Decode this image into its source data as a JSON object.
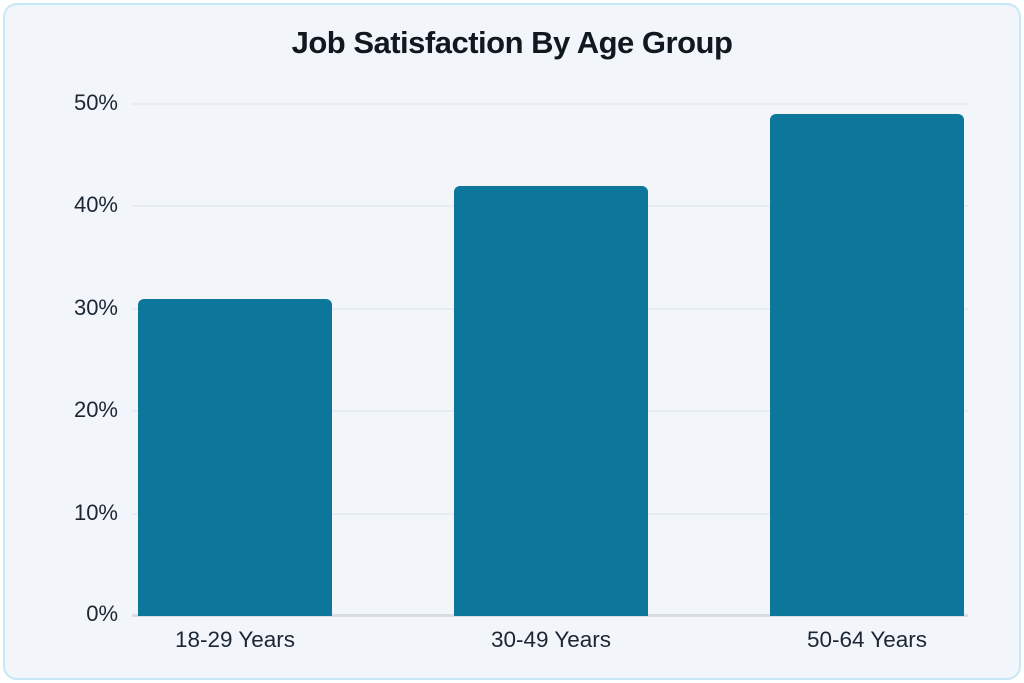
{
  "card": {
    "outer_background": "#ffffff",
    "background": "#f2f6fb",
    "border_color": "#c6e8f6"
  },
  "chart_data": {
    "type": "bar",
    "title": "Job Satisfaction By Age Group",
    "categories": [
      "18-29 Years",
      "30-49 Years",
      "50-64 Years"
    ],
    "values": [
      31,
      42,
      49
    ],
    "value_suffix": "%",
    "xlabel": "",
    "ylabel": "",
    "ylim": [
      0,
      50
    ],
    "yticks": [
      0,
      10,
      20,
      30,
      40,
      50
    ],
    "ytick_labels": [
      "0%",
      "10%",
      "20%",
      "30%",
      "40%",
      "50%"
    ],
    "grid": true,
    "legend": "none",
    "bar_color": "#0c769b",
    "gridline_color": "#e7ecf2",
    "axis_line_color": "#d8dde3",
    "text_color": "#1c2733",
    "title_color": "#101820"
  }
}
